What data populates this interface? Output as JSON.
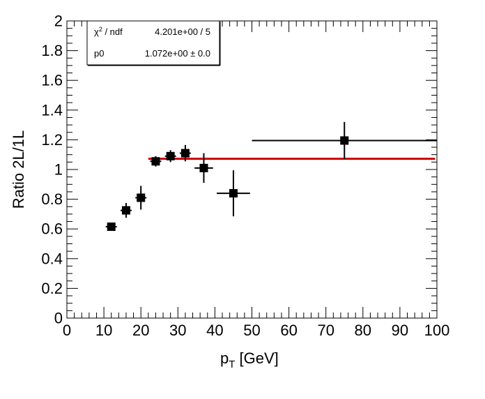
{
  "chart_data": {
    "type": "scatter",
    "xlabel_main": "p",
    "xlabel_sub": "T",
    "xlabel_unit": " [GeV]",
    "ylabel": "Ratio 2L/1L",
    "xlim": [
      0,
      100
    ],
    "ylim": [
      0,
      2
    ],
    "x_ticks": [
      "0",
      "10",
      "20",
      "30",
      "40",
      "50",
      "60",
      "70",
      "80",
      "90",
      "100"
    ],
    "y_ticks": [
      "0",
      "0.2",
      "0.4",
      "0.6",
      "0.8",
      "1",
      "1.2",
      "1.4",
      "1.6",
      "1.8",
      "2"
    ],
    "grid": false,
    "points": [
      {
        "x": 12,
        "xerr": 1.5,
        "y": 0.615,
        "yerr": 0.02
      },
      {
        "x": 16,
        "xerr": 1.5,
        "y": 0.725,
        "yerr": 0.05
      },
      {
        "x": 20,
        "xerr": 1.5,
        "y": 0.81,
        "yerr": 0.08
      },
      {
        "x": 24,
        "xerr": 1.5,
        "y": 1.055,
        "yerr": 0.035
      },
      {
        "x": 28,
        "xerr": 1.5,
        "y": 1.09,
        "yerr": 0.04
      },
      {
        "x": 32,
        "xerr": 1.5,
        "y": 1.11,
        "yerr": 0.055
      },
      {
        "x": 37,
        "xerr": 2.5,
        "y": 1.01,
        "yerr": 0.1
      },
      {
        "x": 45,
        "xerr": 4.5,
        "y": 0.84,
        "yerr": 0.155
      },
      {
        "x": 75,
        "xerr": 25,
        "y": 1.195,
        "yerr": 0.125
      }
    ],
    "fit": {
      "y": 1.072,
      "x_range": [
        22,
        99.5
      ],
      "color": "#cc0000"
    },
    "marker_color": "#000000",
    "stats_box": {
      "chi2_label": "χ",
      "chi2_sup": "2",
      "chi2_suffix": " / ndf",
      "chi2_value": "4.201e+00 / 5",
      "p0_label": "p0",
      "p0_value": "1.072e+00 ± 0.0"
    }
  }
}
